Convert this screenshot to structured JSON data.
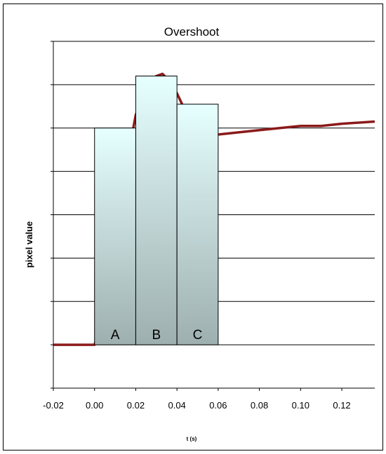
{
  "chart_data": {
    "type": "line",
    "title": "Overshoot",
    "xlabel": "t  (s)",
    "ylabel": "pixel value",
    "xlim": [
      -0.02,
      0.136
    ],
    "ylim": [
      -1,
      7
    ],
    "x_ticks": [
      "-0.02",
      "0.00",
      "0.02",
      "0.04",
      "0.06",
      "0.08",
      "0.10",
      "0.12"
    ],
    "y_tick_labels_shown": false,
    "grid": "horizontal",
    "series": [
      {
        "color": "#8b1a1a",
        "x": [
          -0.02,
          -0.01,
          0.0,
          0.01,
          0.015,
          0.018,
          0.02,
          0.025,
          0.03,
          0.033,
          0.036,
          0.04,
          0.045,
          0.05,
          0.055,
          0.06,
          0.07,
          0.08,
          0.09,
          0.1,
          0.11,
          0.12,
          0.136
        ],
        "y": [
          0.0,
          0.0,
          0.0,
          1.5,
          4.0,
          4.8,
          5.3,
          5.95,
          6.2,
          6.25,
          6.1,
          5.8,
          5.3,
          5.0,
          4.9,
          4.85,
          4.9,
          4.95,
          5.0,
          5.05,
          5.05,
          5.1,
          5.15
        ]
      }
    ],
    "bars": [
      {
        "label": "A",
        "x_start": 0.0,
        "x_end": 0.02,
        "value": 5.0
      },
      {
        "label": "B",
        "x_start": 0.02,
        "x_end": 0.04,
        "value": 6.2
      },
      {
        "label": "C",
        "x_start": 0.04,
        "x_end": 0.06,
        "value": 5.55
      }
    ],
    "bar_gradient": [
      "#e6ffff",
      "#9eafaf"
    ]
  }
}
